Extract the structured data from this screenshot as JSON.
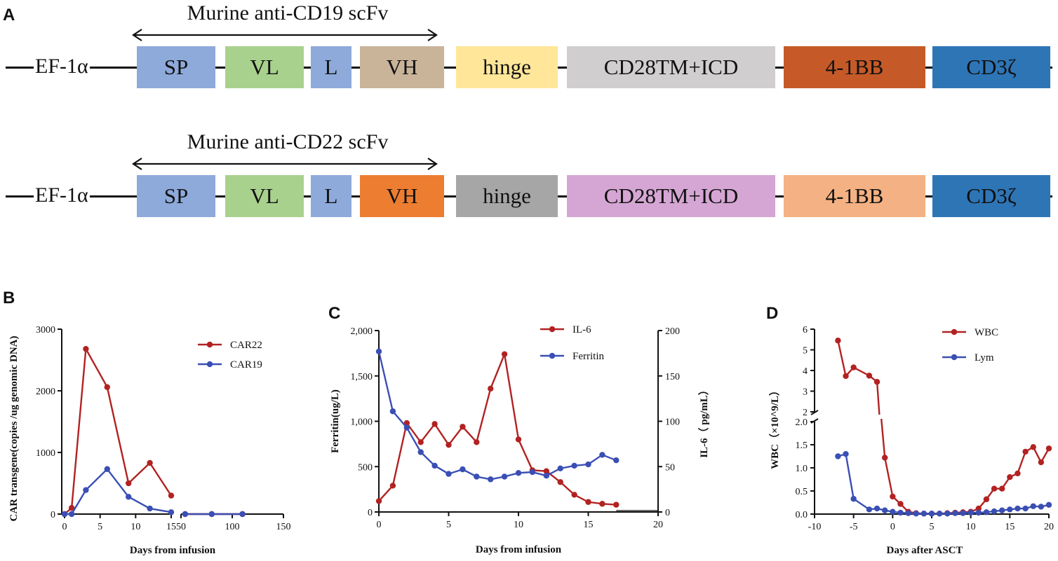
{
  "panel_labels": {
    "a": "A",
    "b": "B",
    "c": "C",
    "d": "D"
  },
  "constructs": [
    {
      "scfv_title": "Murine anti-CD19 scFv",
      "promoter": "EF-1α",
      "segments": [
        {
          "label": "SP",
          "color": "#8eaadb"
        },
        {
          "label": "VL",
          "color": "#a9d18e"
        },
        {
          "label": "L",
          "color": "#8eaadb"
        },
        {
          "label": "VH",
          "color": "#c9b49a"
        },
        {
          "label": "hinge",
          "color": "#ffe699"
        },
        {
          "label": "CD28TM+ICD",
          "color": "#d0cece"
        },
        {
          "label": "4-1BB",
          "color": "#c55a28"
        },
        {
          "label": "CD3ζ",
          "color": "#2e75b6"
        }
      ]
    },
    {
      "scfv_title": "Murine anti-CD22 scFv",
      "promoter": "EF-1α",
      "segments": [
        {
          "label": "SP",
          "color": "#8eaadb"
        },
        {
          "label": "VL",
          "color": "#a9d18e"
        },
        {
          "label": "L",
          "color": "#8eaadb"
        },
        {
          "label": "VH",
          "color": "#ed7d31"
        },
        {
          "label": "hinge",
          "color": "#a6a6a6"
        },
        {
          "label": "CD28TM+ICD",
          "color": "#d5a6d4"
        },
        {
          "label": "4-1BB",
          "color": "#f4b183"
        },
        {
          "label": "CD3ζ",
          "color": "#2e75b6"
        }
      ]
    }
  ],
  "chart_data": [
    {
      "panel": "B",
      "type": "line",
      "title": "",
      "xlabel": "Days from infusion",
      "ylabel": "CAR transgene(copies /ug genomic DNA)",
      "x_ticks_left": [
        "0",
        "5",
        "10",
        "15"
      ],
      "x_ticks_right": [
        "50",
        "100",
        "150"
      ],
      "xlim_left": [
        0,
        15
      ],
      "xlim_right": [
        50,
        150
      ],
      "ylim": [
        0,
        3000
      ],
      "y_ticks": [
        "0",
        "1000",
        "2000",
        "3000"
      ],
      "legend_position": "top-right",
      "series": [
        {
          "name": "CAR22",
          "color": "#b22222",
          "points_left": [
            [
              0,
              0
            ],
            [
              1,
              100
            ],
            [
              3,
              2680
            ],
            [
              6,
              2060
            ],
            [
              9,
              500
            ],
            [
              12,
              830
            ],
            [
              15,
              300
            ]
          ],
          "points_right": [
            [
              54,
              0
            ],
            [
              80,
              0
            ],
            [
              110,
              0
            ]
          ]
        },
        {
          "name": "CAR19",
          "color": "#3a4fb4",
          "points_left": [
            [
              0,
              0
            ],
            [
              1,
              0
            ],
            [
              3,
              390
            ],
            [
              6,
              730
            ],
            [
              9,
              280
            ],
            [
              12,
              90
            ],
            [
              15,
              30
            ]
          ],
          "points_right": [
            [
              54,
              0
            ],
            [
              80,
              0
            ],
            [
              110,
              0
            ]
          ]
        }
      ]
    },
    {
      "panel": "C",
      "type": "line",
      "title": "",
      "xlabel": "Days from infusion",
      "ylabel_left": "Ferritin(ug/L)",
      "ylabel_right": "IL-6（ pg/mL）",
      "xlim": [
        0,
        20
      ],
      "x_ticks": [
        "0",
        "5",
        "10",
        "15",
        "20"
      ],
      "ylim_left": [
        0,
        2000
      ],
      "y_ticks_left": [
        "0",
        "500",
        "1,000",
        "1,500",
        "2,000"
      ],
      "ylim_right": [
        0,
        200
      ],
      "y_ticks_right": [
        "0",
        "50",
        "100",
        "150",
        "200"
      ],
      "legend_position": "top-right",
      "series": [
        {
          "name": "IL-6",
          "axis": "right",
          "color": "#b22222",
          "x": [
            0,
            1,
            2,
            3,
            4,
            5,
            6,
            7,
            8,
            9,
            10,
            11,
            12,
            13,
            14,
            15,
            16,
            17
          ],
          "y": [
            12,
            29,
            98,
            77,
            97,
            74,
            94,
            77,
            136,
            174,
            80,
            46,
            45,
            33,
            19,
            11,
            9,
            8
          ]
        },
        {
          "name": "Ferritin",
          "axis": "left",
          "color": "#3a4fb4",
          "x": [
            0,
            1,
            2,
            3,
            4,
            5,
            6,
            7,
            8,
            9,
            10,
            11,
            12,
            13,
            14,
            15,
            16,
            17
          ],
          "y": [
            1770,
            1110,
            930,
            660,
            510,
            420,
            470,
            390,
            360,
            390,
            430,
            440,
            400,
            480,
            510,
            525,
            630,
            570
          ]
        }
      ]
    },
    {
      "panel": "D",
      "type": "line",
      "title": "",
      "xlabel": "Days after ASCT",
      "ylabel": "WBC（×10^9/L）",
      "xlim": [
        -10,
        20
      ],
      "x_ticks": [
        "-10",
        "-5",
        "0",
        "5",
        "10",
        "15",
        "20"
      ],
      "y_broken_axis": {
        "lower_range": [
          0,
          2.0
        ],
        "upper_range": [
          2,
          6
        ]
      },
      "y_ticks_lower": [
        "0.0",
        "0.5",
        "1.0",
        "1.5",
        "2.0"
      ],
      "y_ticks_upper": [
        "2",
        "3",
        "4",
        "5",
        "6"
      ],
      "legend_position": "top-right",
      "series": [
        {
          "name": "WBC",
          "color": "#b22222",
          "x": [
            -7,
            -6,
            -5,
            -3,
            -2,
            -1,
            0,
            1,
            2,
            3,
            4,
            5,
            6,
            7,
            8,
            9,
            10,
            11,
            12,
            13,
            14,
            15,
            16,
            17,
            18,
            19,
            20
          ],
          "y": [
            5.45,
            3.73,
            4.15,
            3.75,
            3.45,
            1.22,
            0.38,
            0.22,
            0.05,
            0.02,
            0.01,
            0.01,
            0.01,
            0.02,
            0.03,
            0.04,
            0.05,
            0.12,
            0.32,
            0.55,
            0.55,
            0.8,
            0.88,
            1.35,
            1.45,
            1.12,
            1.42
          ]
        },
        {
          "name": "Lym",
          "color": "#3a4fb4",
          "x": [
            -7,
            -6,
            -5,
            -3,
            -2,
            -1,
            0,
            1,
            2,
            3,
            4,
            5,
            6,
            7,
            8,
            9,
            10,
            11,
            12,
            13,
            14,
            15,
            16,
            17,
            18,
            19,
            20
          ],
          "y": [
            1.25,
            1.3,
            0.33,
            0.1,
            0.12,
            0.08,
            0.05,
            0.03,
            0.02,
            0.01,
            0.01,
            0.01,
            0.01,
            0.01,
            0.02,
            0.02,
            0.03,
            0.03,
            0.04,
            0.06,
            0.08,
            0.1,
            0.12,
            0.12,
            0.17,
            0.16,
            0.2
          ]
        }
      ]
    }
  ]
}
